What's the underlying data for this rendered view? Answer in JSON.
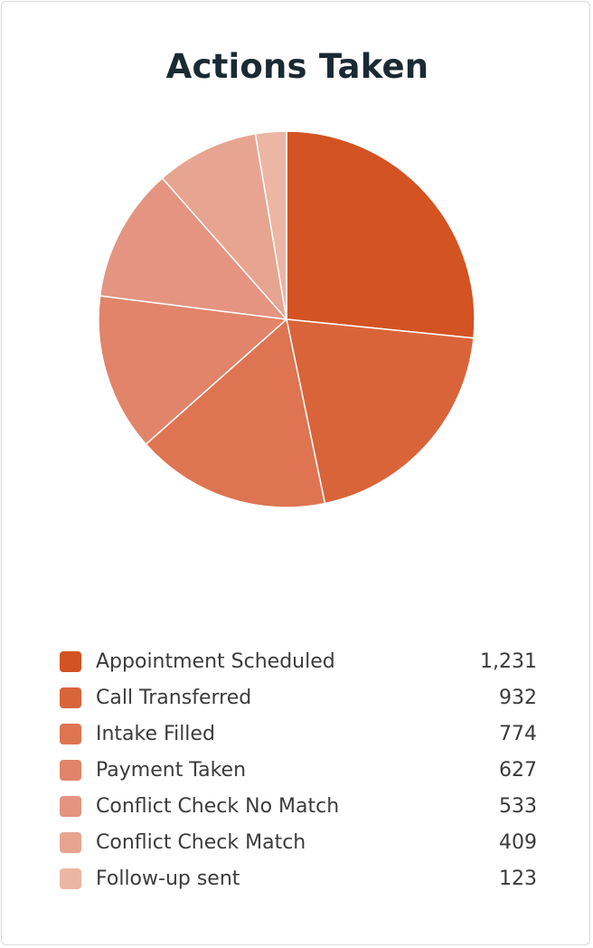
{
  "chart_data": {
    "type": "pie",
    "title": "Actions Taken",
    "legend_position": "bottom",
    "slices": [
      {
        "label": "Appointment Scheduled",
        "value": 1231,
        "display": "1,231",
        "color": "#d35322"
      },
      {
        "label": "Call Transferred",
        "value": 932,
        "display": "932",
        "color": "#d9643a"
      },
      {
        "label": "Intake Filled",
        "value": 774,
        "display": "774",
        "color": "#de7452"
      },
      {
        "label": "Payment Taken",
        "value": 627,
        "display": "627",
        "color": "#e1846a"
      },
      {
        "label": "Conflict Check No Match",
        "value": 533,
        "display": "533",
        "color": "#e49480"
      },
      {
        "label": "Conflict Check Match",
        "value": 409,
        "display": "409",
        "color": "#e7a491"
      },
      {
        "label": "Follow-up sent",
        "value": 123,
        "display": "123",
        "color": "#ebb6a4"
      }
    ]
  }
}
